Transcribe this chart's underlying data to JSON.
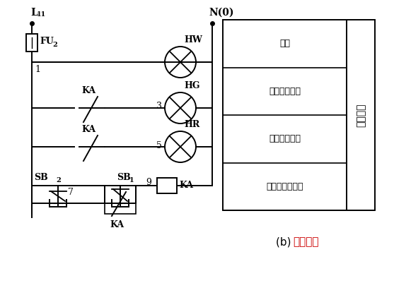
{
  "title_black": "(b) ",
  "title_red": "控制电路",
  "title_color": "#cc0000",
  "bg_color": "#ffffff",
  "line_color": "#000000",
  "figsize": [
    5.57,
    4.18
  ],
  "dpi": 100,
  "label_L11": "L",
  "label_L11_sub": "11",
  "label_N0": "N(0)",
  "label_FU2": "FU",
  "label_FU2_sub": "2",
  "label_KA": "KA",
  "label_HW": "HW",
  "label_HG": "HG",
  "label_HR": "HR",
  "label_SB2": "SB",
  "label_SB2_sub": "2",
  "label_SB1": "SB",
  "label_SB1_sub": "1",
  "label_node1": "1",
  "label_node3": "3",
  "label_node5": "5",
  "label_node7": "7",
  "label_node9": "9",
  "box_labels": [
    "电源",
    "变频停止指示",
    "变频运行指示",
    "变频启动、停止"
  ],
  "box_right_label": "控制回路"
}
